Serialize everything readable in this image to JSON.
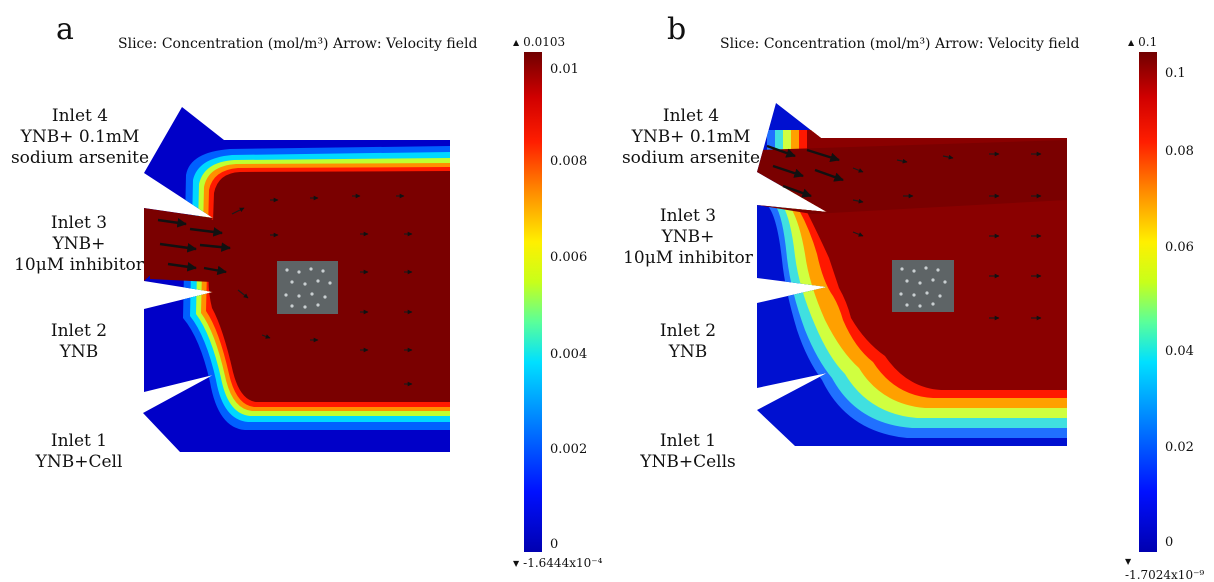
{
  "panels": [
    {
      "letter": "a",
      "title": "Slice: Concentration (mol/m³) Arrow: Velocity field",
      "inlets": [
        {
          "lines": [
            "Inlet  4",
            "YNB+ 0.1mM",
            "sodium arsenite"
          ]
        },
        {
          "lines": [
            "Inlet  3",
            "YNB+",
            "10μM inhibitor"
          ]
        },
        {
          "lines": [
            "Inlet 2",
            "YNB"
          ]
        },
        {
          "lines": [
            "Inlet 1",
            "YNB+Cell"
          ]
        }
      ],
      "colorbar": {
        "max_label": "0.0103",
        "min_label": "-1.6444x10⁻⁴",
        "ticks": [
          "0.01",
          "0.008",
          "0.006",
          "0.004",
          "0.002",
          "0"
        ]
      }
    },
    {
      "letter": "b",
      "title": "Slice: Concentration (mol/m³) Arrow: Velocity field",
      "inlets": [
        {
          "lines": [
            "Inlet  4",
            "YNB+ 0.1mM",
            "sodium arsenite"
          ]
        },
        {
          "lines": [
            "Inlet  3",
            "YNB+",
            "10μM inhibitor"
          ]
        },
        {
          "lines": [
            "Inlet 2",
            "YNB"
          ]
        },
        {
          "lines": [
            "Inlet 1",
            "YNB+Cells"
          ]
        }
      ],
      "colorbar": {
        "max_label": "0.1",
        "min_label": "-1.7024x10⁻⁹",
        "ticks": [
          "0.1",
          "0.08",
          "0.06",
          "0.04",
          "0.02",
          "0"
        ]
      }
    }
  ],
  "colors": {
    "high": "#7a0000",
    "low": "#0010c8",
    "chamber_center": "#5e6466"
  }
}
